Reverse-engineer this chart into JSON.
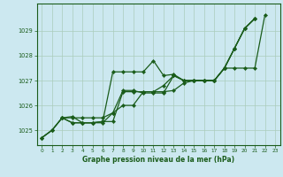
{
  "title": "Graphe pression niveau de la mer (hPa)",
  "bg_color": "#cce8f0",
  "grid_color": "#aaccbb",
  "line_color": "#1a5c1a",
  "xlim": [
    -0.5,
    23.5
  ],
  "ylim": [
    1024.4,
    1030.1
  ],
  "yticks": [
    1025,
    1026,
    1027,
    1028,
    1029
  ],
  "xticks": [
    0,
    1,
    2,
    3,
    4,
    5,
    6,
    7,
    8,
    9,
    10,
    11,
    12,
    13,
    14,
    15,
    16,
    17,
    18,
    19,
    20,
    21,
    22,
    23
  ],
  "series": [
    [
      0,
      1024.7
    ],
    [
      1,
      1025.0
    ],
    [
      2,
      1025.5
    ],
    [
      3,
      1025.55
    ],
    [
      4,
      1025.3
    ],
    [
      5,
      1025.3
    ],
    [
      6,
      1025.35
    ],
    [
      7,
      1027.35
    ],
    [
      8,
      1027.35
    ],
    [
      9,
      1027.35
    ],
    [
      10,
      1027.35
    ],
    [
      11,
      1027.8
    ],
    [
      12,
      1027.2
    ],
    [
      13,
      1027.25
    ],
    [
      14,
      1027.0
    ],
    [
      15,
      1027.0
    ],
    [
      16,
      1027.0
    ],
    [
      17,
      1027.0
    ],
    [
      18,
      1027.5
    ],
    [
      19,
      1028.3
    ],
    [
      20,
      1029.1
    ],
    [
      21,
      1029.5
    ]
  ],
  "s2": [
    [
      0,
      1024.7
    ],
    [
      1,
      1025.0
    ],
    [
      2,
      1025.5
    ],
    [
      3,
      1025.3
    ],
    [
      4,
      1025.3
    ],
    [
      5,
      1025.3
    ],
    [
      6,
      1025.35
    ],
    [
      7,
      1025.35
    ],
    [
      8,
      1026.55
    ],
    [
      9,
      1026.55
    ],
    [
      10,
      1026.55
    ],
    [
      11,
      1026.55
    ],
    [
      12,
      1026.55
    ],
    [
      13,
      1026.6
    ],
    [
      14,
      1026.9
    ],
    [
      15,
      1027.0
    ],
    [
      16,
      1027.0
    ],
    [
      17,
      1027.0
    ],
    [
      18,
      1027.5
    ],
    [
      19,
      1028.3
    ],
    [
      20,
      1029.1
    ],
    [
      21,
      1029.5
    ]
  ],
  "s3": [
    [
      0,
      1024.7
    ],
    [
      1,
      1025.0
    ],
    [
      2,
      1025.5
    ],
    [
      3,
      1025.5
    ],
    [
      4,
      1025.5
    ],
    [
      5,
      1025.5
    ],
    [
      6,
      1025.5
    ],
    [
      7,
      1025.7
    ],
    [
      8,
      1026.6
    ],
    [
      9,
      1026.6
    ],
    [
      10,
      1026.5
    ],
    [
      11,
      1026.5
    ],
    [
      12,
      1026.5
    ],
    [
      13,
      1027.2
    ],
    [
      14,
      1027.0
    ],
    [
      15,
      1027.0
    ],
    [
      16,
      1027.0
    ],
    [
      17,
      1027.0
    ],
    [
      18,
      1027.5
    ],
    [
      19,
      1028.3
    ],
    [
      20,
      1029.1
    ],
    [
      21,
      1029.5
    ]
  ],
  "s4": [
    [
      2,
      1025.5
    ],
    [
      3,
      1025.3
    ],
    [
      4,
      1025.3
    ],
    [
      5,
      1025.3
    ],
    [
      6,
      1025.3
    ],
    [
      7,
      1025.7
    ],
    [
      8,
      1026.0
    ],
    [
      9,
      1026.0
    ],
    [
      10,
      1026.55
    ],
    [
      11,
      1026.55
    ],
    [
      12,
      1026.8
    ],
    [
      13,
      1027.2
    ],
    [
      14,
      1027.0
    ],
    [
      15,
      1027.0
    ],
    [
      16,
      1027.0
    ],
    [
      17,
      1027.0
    ],
    [
      18,
      1027.5
    ],
    [
      19,
      1027.5
    ],
    [
      20,
      1027.5
    ],
    [
      21,
      1027.5
    ],
    [
      22,
      1029.65
    ]
  ]
}
